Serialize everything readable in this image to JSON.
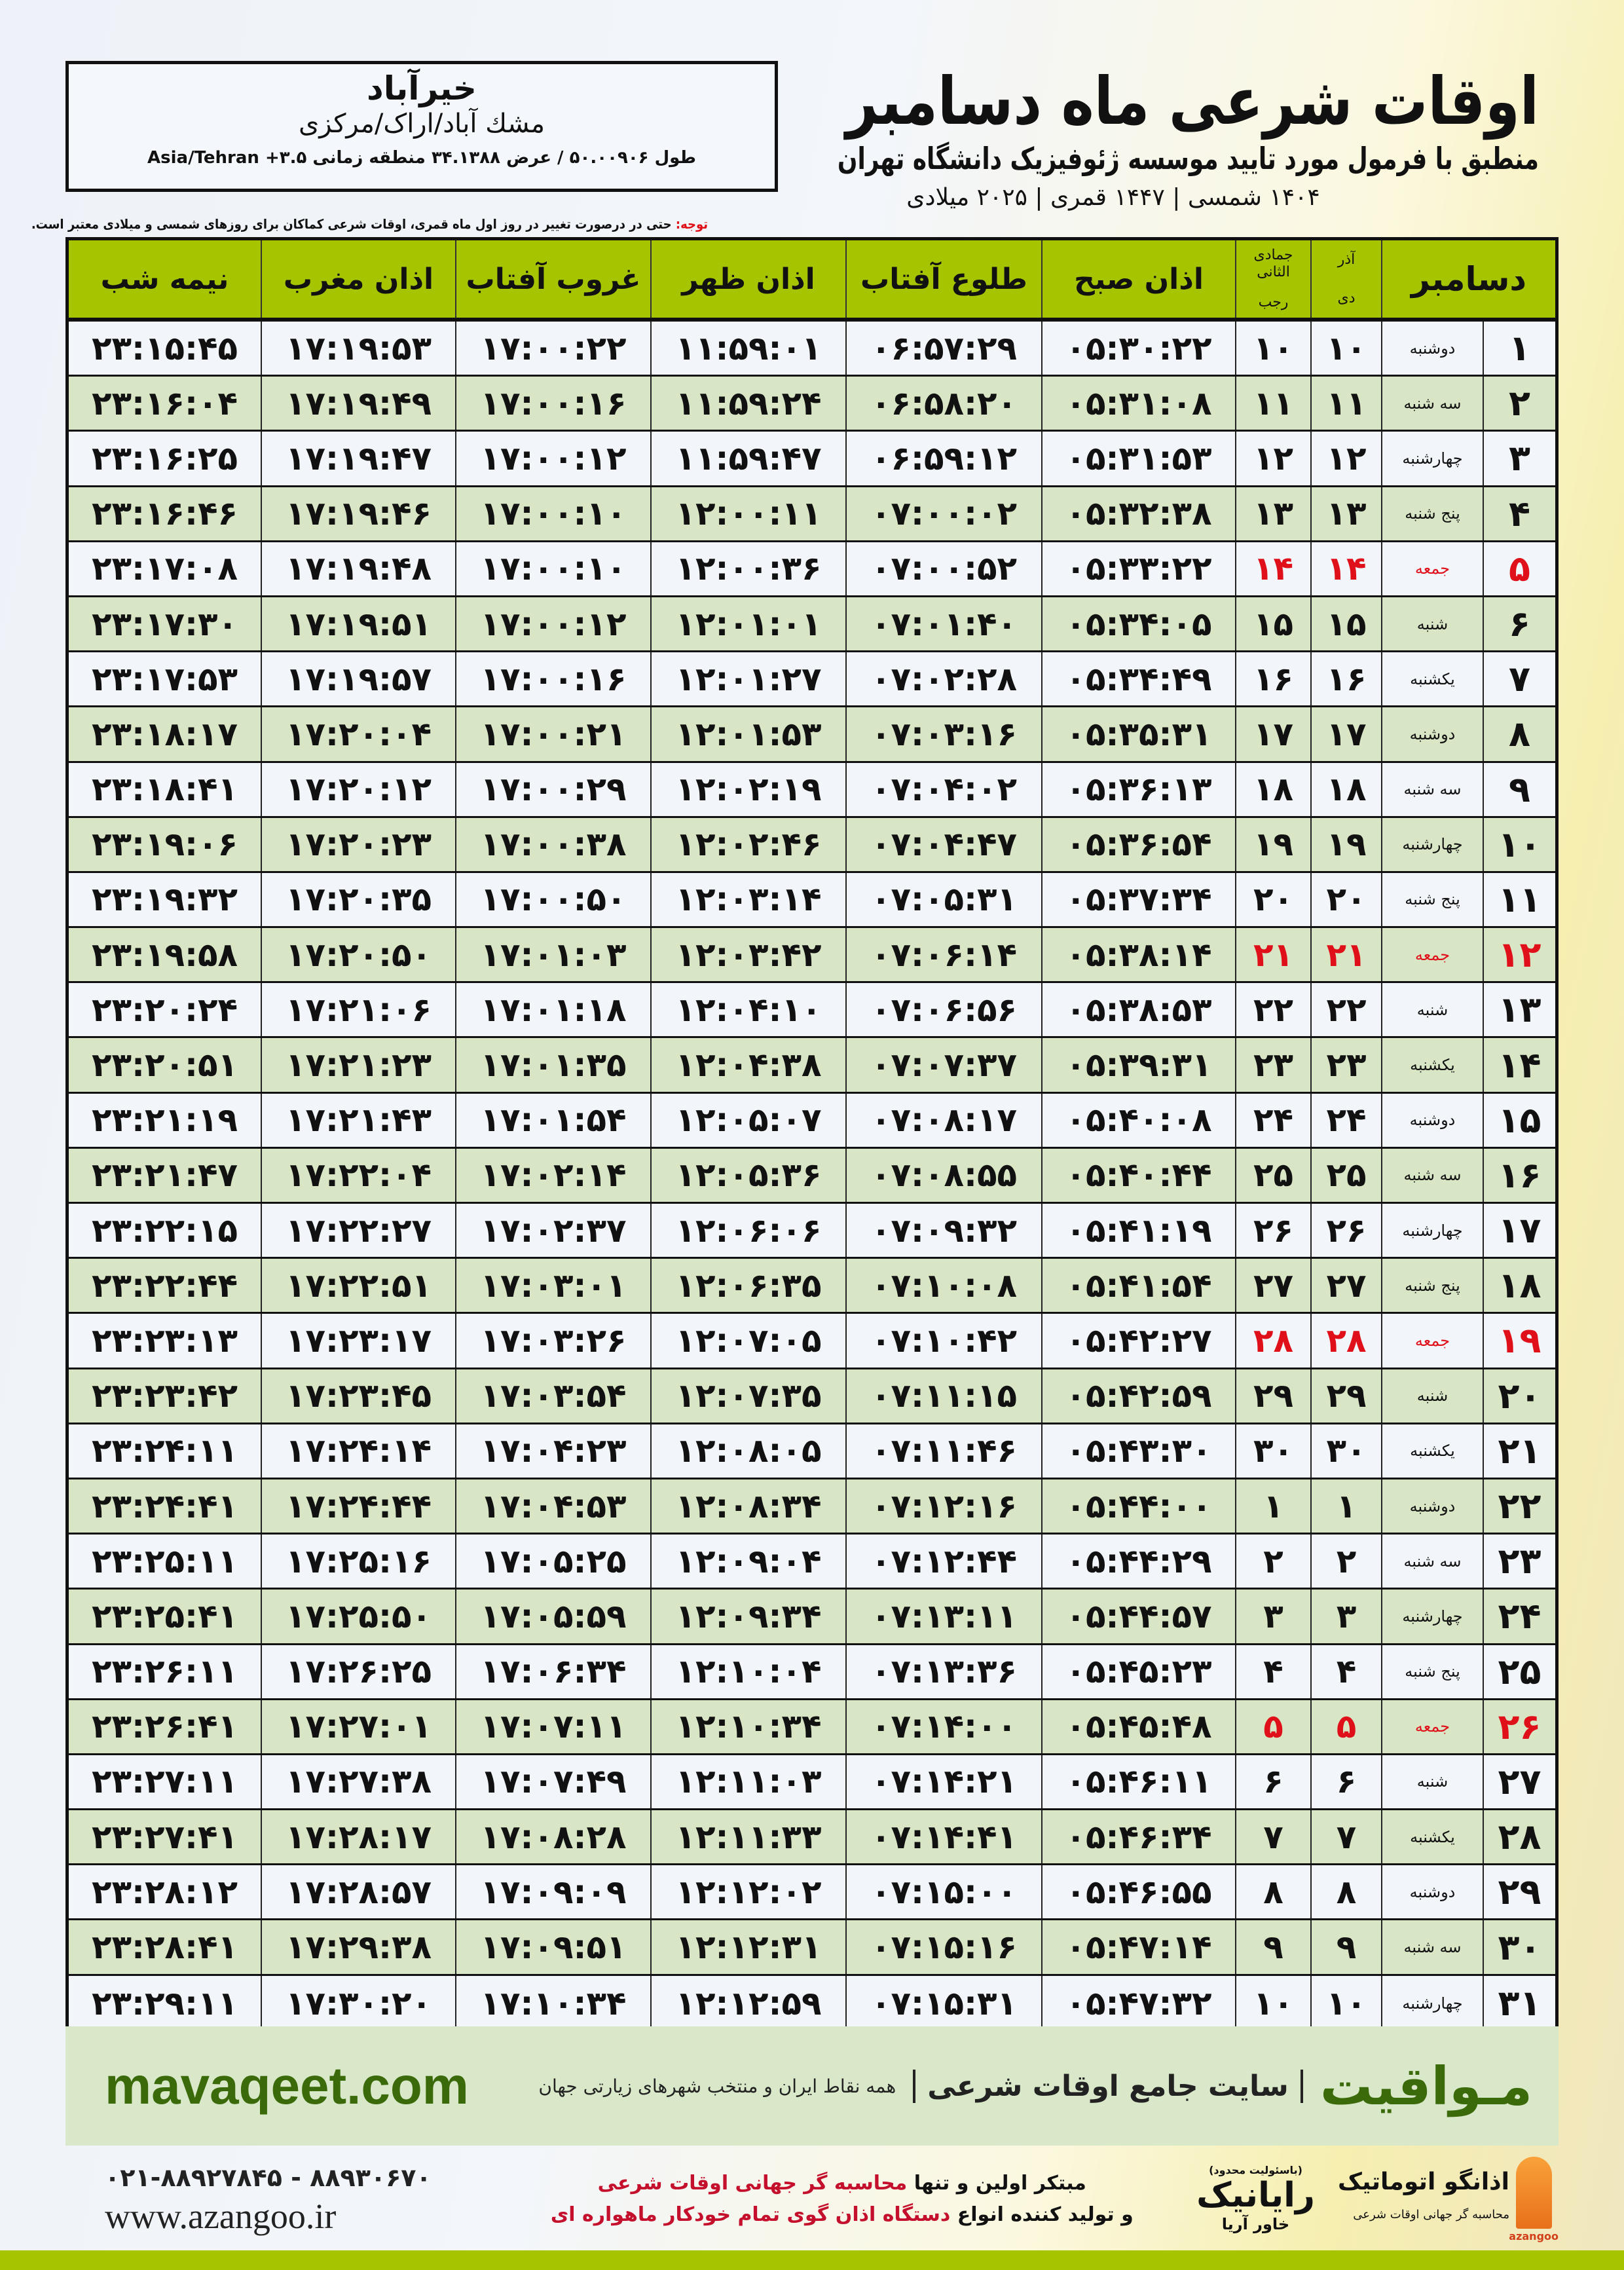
{
  "location": {
    "city": "خیرآباد",
    "region": "مشك آباد/اراک/مرکزی",
    "coords": "طول ۵۰.۰۰۹۰۶ / عرض ۳۴.۱۳۸۸ منطقه زمانی ۳.۵+ Asia/Tehran"
  },
  "header": {
    "title": "اوقات شرعی ماه دسامبر",
    "subtitle": "منطبق با فرمول مورد تایید موسسه ژئوفیزیک دانشگاه تهران",
    "dates": "۱۴۰۴ شمسی | ۱۴۴۷ قمری | ۲۰۲۵ میلادی",
    "note_label": "توجه:",
    "note_text": " حتی در درصورت تغییر در روز اول ماه قمری، اوقات شرعی کماکان برای روزهای شمسی و میلادی معتبر است."
  },
  "table": {
    "columns": {
      "midnight": "نیمه شب",
      "maghrib": "اذان مغرب",
      "sunset": "غروب آفتاب",
      "dhuhr": "اذان ظهر",
      "sunrise": "طلوع آفتاب",
      "fajr": "اذان صبح",
      "hijri_months": "جمادی الثانی",
      "hijri_month2": "رجب",
      "shamsi_month1": "آذر",
      "shamsi_month2": "دی",
      "gregorian": "دسامبر"
    },
    "friday_color": "#e0101a",
    "header_color": "#a6c400",
    "rows": [
      {
        "day": "۱",
        "weekday": "دوشنبه",
        "dey": "۱۰",
        "hijri": "۱۰",
        "fajr": "۰۵:۳۰:۲۲",
        "sunrise": "۰۶:۵۷:۲۹",
        "dhuhr": "۱۱:۵۹:۰۱",
        "sunset": "۱۷:۰۰:۲۲",
        "maghrib": "۱۷:۱۹:۵۳",
        "midnight": "۲۳:۱۵:۴۵"
      },
      {
        "day": "۲",
        "weekday": "سه شنبه",
        "dey": "۱۱",
        "hijri": "۱۱",
        "fajr": "۰۵:۳۱:۰۸",
        "sunrise": "۰۶:۵۸:۲۰",
        "dhuhr": "۱۱:۵۹:۲۴",
        "sunset": "۱۷:۰۰:۱۶",
        "maghrib": "۱۷:۱۹:۴۹",
        "midnight": "۲۳:۱۶:۰۴"
      },
      {
        "day": "۳",
        "weekday": "چهارشنبه",
        "dey": "۱۲",
        "hijri": "۱۲",
        "fajr": "۰۵:۳۱:۵۳",
        "sunrise": "۰۶:۵۹:۱۲",
        "dhuhr": "۱۱:۵۹:۴۷",
        "sunset": "۱۷:۰۰:۱۲",
        "maghrib": "۱۷:۱۹:۴۷",
        "midnight": "۲۳:۱۶:۲۵"
      },
      {
        "day": "۴",
        "weekday": "پنج شنبه",
        "dey": "۱۳",
        "hijri": "۱۳",
        "fajr": "۰۵:۳۲:۳۸",
        "sunrise": "۰۷:۰۰:۰۲",
        "dhuhr": "۱۲:۰۰:۱۱",
        "sunset": "۱۷:۰۰:۱۰",
        "maghrib": "۱۷:۱۹:۴۶",
        "midnight": "۲۳:۱۶:۴۶"
      },
      {
        "day": "۵",
        "weekday": "جمعه",
        "dey": "۱۴",
        "hijri": "۱۴",
        "fajr": "۰۵:۳۳:۲۲",
        "sunrise": "۰۷:۰۰:۵۲",
        "dhuhr": "۱۲:۰۰:۳۶",
        "sunset": "۱۷:۰۰:۱۰",
        "maghrib": "۱۷:۱۹:۴۸",
        "midnight": "۲۳:۱۷:۰۸"
      },
      {
        "day": "۶",
        "weekday": "شنبه",
        "dey": "۱۵",
        "hijri": "۱۵",
        "fajr": "۰۵:۳۴:۰۵",
        "sunrise": "۰۷:۰۱:۴۰",
        "dhuhr": "۱۲:۰۱:۰۱",
        "sunset": "۱۷:۰۰:۱۲",
        "maghrib": "۱۷:۱۹:۵۱",
        "midnight": "۲۳:۱۷:۳۰"
      },
      {
        "day": "۷",
        "weekday": "یکشنبه",
        "dey": "۱۶",
        "hijri": "۱۶",
        "fajr": "۰۵:۳۴:۴۹",
        "sunrise": "۰۷:۰۲:۲۸",
        "dhuhr": "۱۲:۰۱:۲۷",
        "sunset": "۱۷:۰۰:۱۶",
        "maghrib": "۱۷:۱۹:۵۷",
        "midnight": "۲۳:۱۷:۵۳"
      },
      {
        "day": "۸",
        "weekday": "دوشنبه",
        "dey": "۱۷",
        "hijri": "۱۷",
        "fajr": "۰۵:۳۵:۳۱",
        "sunrise": "۰۷:۰۳:۱۶",
        "dhuhr": "۱۲:۰۱:۵۳",
        "sunset": "۱۷:۰۰:۲۱",
        "maghrib": "۱۷:۲۰:۰۴",
        "midnight": "۲۳:۱۸:۱۷"
      },
      {
        "day": "۹",
        "weekday": "سه شنبه",
        "dey": "۱۸",
        "hijri": "۱۸",
        "fajr": "۰۵:۳۶:۱۳",
        "sunrise": "۰۷:۰۴:۰۲",
        "dhuhr": "۱۲:۰۲:۱۹",
        "sunset": "۱۷:۰۰:۲۹",
        "maghrib": "۱۷:۲۰:۱۲",
        "midnight": "۲۳:۱۸:۴۱"
      },
      {
        "day": "۱۰",
        "weekday": "چهارشنبه",
        "dey": "۱۹",
        "hijri": "۱۹",
        "fajr": "۰۵:۳۶:۵۴",
        "sunrise": "۰۷:۰۴:۴۷",
        "dhuhr": "۱۲:۰۲:۴۶",
        "sunset": "۱۷:۰۰:۳۸",
        "maghrib": "۱۷:۲۰:۲۳",
        "midnight": "۲۳:۱۹:۰۶"
      },
      {
        "day": "۱۱",
        "weekday": "پنج شنبه",
        "dey": "۲۰",
        "hijri": "۲۰",
        "fajr": "۰۵:۳۷:۳۴",
        "sunrise": "۰۷:۰۵:۳۱",
        "dhuhr": "۱۲:۰۳:۱۴",
        "sunset": "۱۷:۰۰:۵۰",
        "maghrib": "۱۷:۲۰:۳۵",
        "midnight": "۲۳:۱۹:۳۲"
      },
      {
        "day": "۱۲",
        "weekday": "جمعه",
        "dey": "۲۱",
        "hijri": "۲۱",
        "fajr": "۰۵:۳۸:۱۴",
        "sunrise": "۰۷:۰۶:۱۴",
        "dhuhr": "۱۲:۰۳:۴۲",
        "sunset": "۱۷:۰۱:۰۳",
        "maghrib": "۱۷:۲۰:۵۰",
        "midnight": "۲۳:۱۹:۵۸"
      },
      {
        "day": "۱۳",
        "weekday": "شنبه",
        "dey": "۲۲",
        "hijri": "۲۲",
        "fajr": "۰۵:۳۸:۵۳",
        "sunrise": "۰۷:۰۶:۵۶",
        "dhuhr": "۱۲:۰۴:۱۰",
        "sunset": "۱۷:۰۱:۱۸",
        "maghrib": "۱۷:۲۱:۰۶",
        "midnight": "۲۳:۲۰:۲۴"
      },
      {
        "day": "۱۴",
        "weekday": "یکشنبه",
        "dey": "۲۳",
        "hijri": "۲۳",
        "fajr": "۰۵:۳۹:۳۱",
        "sunrise": "۰۷:۰۷:۳۷",
        "dhuhr": "۱۲:۰۴:۳۸",
        "sunset": "۱۷:۰۱:۳۵",
        "maghrib": "۱۷:۲۱:۲۳",
        "midnight": "۲۳:۲۰:۵۱"
      },
      {
        "day": "۱۵",
        "weekday": "دوشنبه",
        "dey": "۲۴",
        "hijri": "۲۴",
        "fajr": "۰۵:۴۰:۰۸",
        "sunrise": "۰۷:۰۸:۱۷",
        "dhuhr": "۱۲:۰۵:۰۷",
        "sunset": "۱۷:۰۱:۵۴",
        "maghrib": "۱۷:۲۱:۴۳",
        "midnight": "۲۳:۲۱:۱۹"
      },
      {
        "day": "۱۶",
        "weekday": "سه شنبه",
        "dey": "۲۵",
        "hijri": "۲۵",
        "fajr": "۰۵:۴۰:۴۴",
        "sunrise": "۰۷:۰۸:۵۵",
        "dhuhr": "۱۲:۰۵:۳۶",
        "sunset": "۱۷:۰۲:۱۴",
        "maghrib": "۱۷:۲۲:۰۴",
        "midnight": "۲۳:۲۱:۴۷"
      },
      {
        "day": "۱۷",
        "weekday": "چهارشنبه",
        "dey": "۲۶",
        "hijri": "۲۶",
        "fajr": "۰۵:۴۱:۱۹",
        "sunrise": "۰۷:۰۹:۳۲",
        "dhuhr": "۱۲:۰۶:۰۶",
        "sunset": "۱۷:۰۲:۳۷",
        "maghrib": "۱۷:۲۲:۲۷",
        "midnight": "۲۳:۲۲:۱۵"
      },
      {
        "day": "۱۸",
        "weekday": "پنج شنبه",
        "dey": "۲۷",
        "hijri": "۲۷",
        "fajr": "۰۵:۴۱:۵۴",
        "sunrise": "۰۷:۱۰:۰۸",
        "dhuhr": "۱۲:۰۶:۳۵",
        "sunset": "۱۷:۰۳:۰۱",
        "maghrib": "۱۷:۲۲:۵۱",
        "midnight": "۲۳:۲۲:۴۴"
      },
      {
        "day": "۱۹",
        "weekday": "جمعه",
        "dey": "۲۸",
        "hijri": "۲۸",
        "fajr": "۰۵:۴۲:۲۷",
        "sunrise": "۰۷:۱۰:۴۲",
        "dhuhr": "۱۲:۰۷:۰۵",
        "sunset": "۱۷:۰۳:۲۶",
        "maghrib": "۱۷:۲۳:۱۷",
        "midnight": "۲۳:۲۳:۱۳"
      },
      {
        "day": "۲۰",
        "weekday": "شنبه",
        "dey": "۲۹",
        "hijri": "۲۹",
        "fajr": "۰۵:۴۲:۵۹",
        "sunrise": "۰۷:۱۱:۱۵",
        "dhuhr": "۱۲:۰۷:۳۵",
        "sunset": "۱۷:۰۳:۵۴",
        "maghrib": "۱۷:۲۳:۴۵",
        "midnight": "۲۳:۲۳:۴۲"
      },
      {
        "day": "۲۱",
        "weekday": "یکشنبه",
        "dey": "۳۰",
        "hijri": "۳۰",
        "fajr": "۰۵:۴۳:۳۰",
        "sunrise": "۰۷:۱۱:۴۶",
        "dhuhr": "۱۲:۰۸:۰۵",
        "sunset": "۱۷:۰۴:۲۳",
        "maghrib": "۱۷:۲۴:۱۴",
        "midnight": "۲۳:۲۴:۱۱"
      },
      {
        "day": "۲۲",
        "weekday": "دوشنبه",
        "dey": "۱",
        "hijri": "۱",
        "fajr": "۰۵:۴۴:۰۰",
        "sunrise": "۰۷:۱۲:۱۶",
        "dhuhr": "۱۲:۰۸:۳۴",
        "sunset": "۱۷:۰۴:۵۳",
        "maghrib": "۱۷:۲۴:۴۴",
        "midnight": "۲۳:۲۴:۴۱"
      },
      {
        "day": "۲۳",
        "weekday": "سه شنبه",
        "dey": "۲",
        "hijri": "۲",
        "fajr": "۰۵:۴۴:۲۹",
        "sunrise": "۰۷:۱۲:۴۴",
        "dhuhr": "۱۲:۰۹:۰۴",
        "sunset": "۱۷:۰۵:۲۵",
        "maghrib": "۱۷:۲۵:۱۶",
        "midnight": "۲۳:۲۵:۱۱"
      },
      {
        "day": "۲۴",
        "weekday": "چهارشنبه",
        "dey": "۳",
        "hijri": "۳",
        "fajr": "۰۵:۴۴:۵۷",
        "sunrise": "۰۷:۱۳:۱۱",
        "dhuhr": "۱۲:۰۹:۳۴",
        "sunset": "۱۷:۰۵:۵۹",
        "maghrib": "۱۷:۲۵:۵۰",
        "midnight": "۲۳:۲۵:۴۱"
      },
      {
        "day": "۲۵",
        "weekday": "پنج شنبه",
        "dey": "۴",
        "hijri": "۴",
        "fajr": "۰۵:۴۵:۲۳",
        "sunrise": "۰۷:۱۳:۳۶",
        "dhuhr": "۱۲:۱۰:۰۴",
        "sunset": "۱۷:۰۶:۳۴",
        "maghrib": "۱۷:۲۶:۲۵",
        "midnight": "۲۳:۲۶:۱۱"
      },
      {
        "day": "۲۶",
        "weekday": "جمعه",
        "dey": "۵",
        "hijri": "۵",
        "fajr": "۰۵:۴۵:۴۸",
        "sunrise": "۰۷:۱۴:۰۰",
        "dhuhr": "۱۲:۱۰:۳۴",
        "sunset": "۱۷:۰۷:۱۱",
        "maghrib": "۱۷:۲۷:۰۱",
        "midnight": "۲۳:۲۶:۴۱"
      },
      {
        "day": "۲۷",
        "weekday": "شنبه",
        "dey": "۶",
        "hijri": "۶",
        "fajr": "۰۵:۴۶:۱۱",
        "sunrise": "۰۷:۱۴:۲۱",
        "dhuhr": "۱۲:۱۱:۰۳",
        "sunset": "۱۷:۰۷:۴۹",
        "maghrib": "۱۷:۲۷:۳۸",
        "midnight": "۲۳:۲۷:۱۱"
      },
      {
        "day": "۲۸",
        "weekday": "یکشنبه",
        "dey": "۷",
        "hijri": "۷",
        "fajr": "۰۵:۴۶:۳۴",
        "sunrise": "۰۷:۱۴:۴۱",
        "dhuhr": "۱۲:۱۱:۳۳",
        "sunset": "۱۷:۰۸:۲۸",
        "maghrib": "۱۷:۲۸:۱۷",
        "midnight": "۲۳:۲۷:۴۱"
      },
      {
        "day": "۲۹",
        "weekday": "دوشنبه",
        "dey": "۸",
        "hijri": "۸",
        "fajr": "۰۵:۴۶:۵۵",
        "sunrise": "۰۷:۱۵:۰۰",
        "dhuhr": "۱۲:۱۲:۰۲",
        "sunset": "۱۷:۰۹:۰۹",
        "maghrib": "۱۷:۲۸:۵۷",
        "midnight": "۲۳:۲۸:۱۲"
      },
      {
        "day": "۳۰",
        "weekday": "سه شنبه",
        "dey": "۹",
        "hijri": "۹",
        "fajr": "۰۵:۴۷:۱۴",
        "sunrise": "۰۷:۱۵:۱۶",
        "dhuhr": "۱۲:۱۲:۳۱",
        "sunset": "۱۷:۰۹:۵۱",
        "maghrib": "۱۷:۲۹:۳۸",
        "midnight": "۲۳:۲۸:۴۱"
      },
      {
        "day": "۳۱",
        "weekday": "چهارشنبه",
        "dey": "۱۰",
        "hijri": "۱۰",
        "fajr": "۰۵:۴۷:۳۲",
        "sunrise": "۰۷:۱۵:۳۱",
        "dhuhr": "۱۲:۱۲:۵۹",
        "sunset": "۱۷:۱۰:۳۴",
        "maghrib": "۱۷:۳۰:۲۰",
        "midnight": "۲۳:۲۹:۱۱"
      }
    ]
  },
  "footer": {
    "site_url": "mavaqeet.com",
    "brand": "مـواقیت",
    "site_desc": "سایت جامع اوقات شرعی",
    "site_sub": "همه نقاط ایران و منتخب شهرهای زیارتی جهان",
    "phone": "۰۲۱-۸۸۹۲۷۸۴۵ - ۸۸۹۳۰۶۷۰",
    "web": "www.azangoo.ir",
    "promo_1a": "مبتکر اولین و تنها ",
    "promo_1b": "محاسبه گر جهانی اوقات شرعی",
    "promo_2a": "و تولید کننده انواع ",
    "promo_2b": "دستگاه اذان گوی تمام خودکار ماهواره ای",
    "rayanik_small": "(باسئولیت محدود)",
    "rayanik": "رایانیک",
    "rayanik_sub": "خاور آریا",
    "azangoo_name": "اذانگو اتوماتیک",
    "azangoo_tag": "محاسبه گر جهانی اوقات شرعی",
    "azangoo_en": "azangoo"
  }
}
